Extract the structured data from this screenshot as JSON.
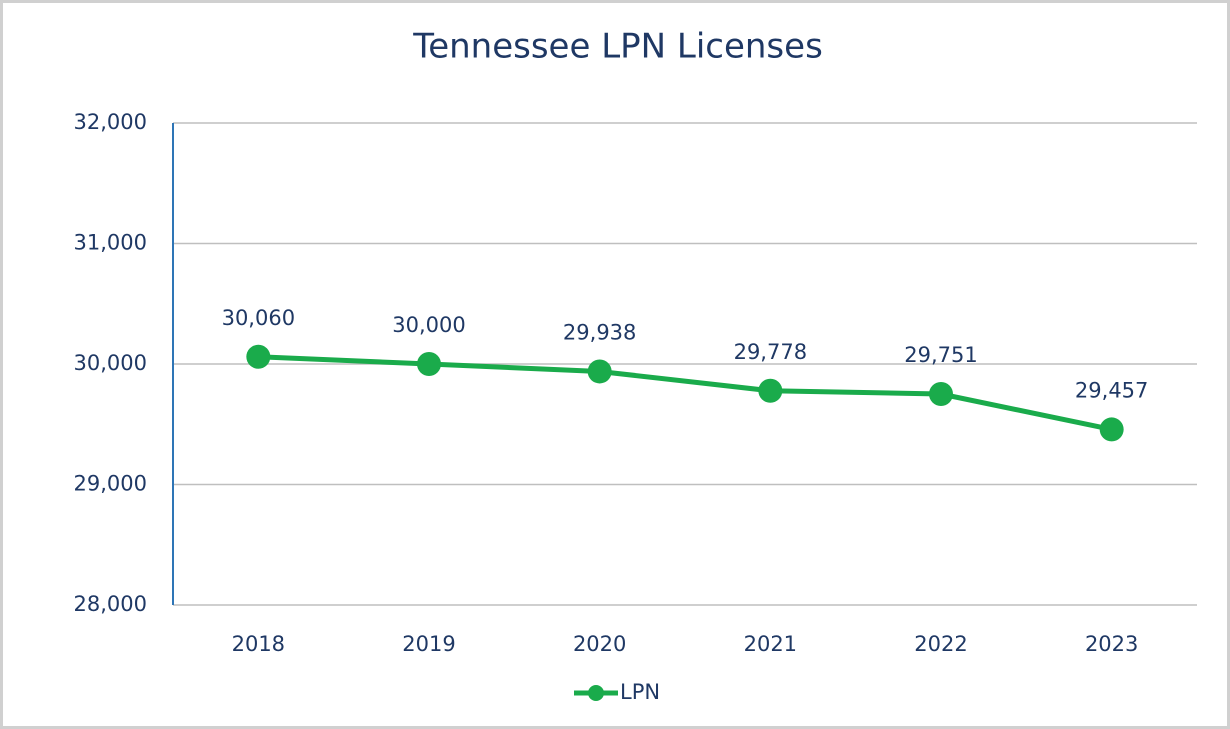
{
  "chart_data": {
    "type": "line",
    "title": "Tennessee LPN Licenses",
    "categories": [
      "2018",
      "2019",
      "2020",
      "2021",
      "2022",
      "2023"
    ],
    "series": [
      {
        "name": "LPN",
        "color": "#1aab4b",
        "values": [
          30060,
          30000,
          29938,
          29778,
          29751,
          29457
        ],
        "value_labels": [
          "30,060",
          "30,000",
          "29,938",
          "29,778",
          "29,751",
          "29,457"
        ]
      }
    ],
    "ylim": [
      28000,
      32000
    ],
    "yticks": [
      {
        "value": 28000,
        "label": "28,000"
      },
      {
        "value": 29000,
        "label": "29,000"
      },
      {
        "value": 30000,
        "label": "30,000"
      },
      {
        "value": 31000,
        "label": "31,000"
      },
      {
        "value": 32000,
        "label": "32,000"
      }
    ],
    "grid": true,
    "legend": "bottom"
  }
}
